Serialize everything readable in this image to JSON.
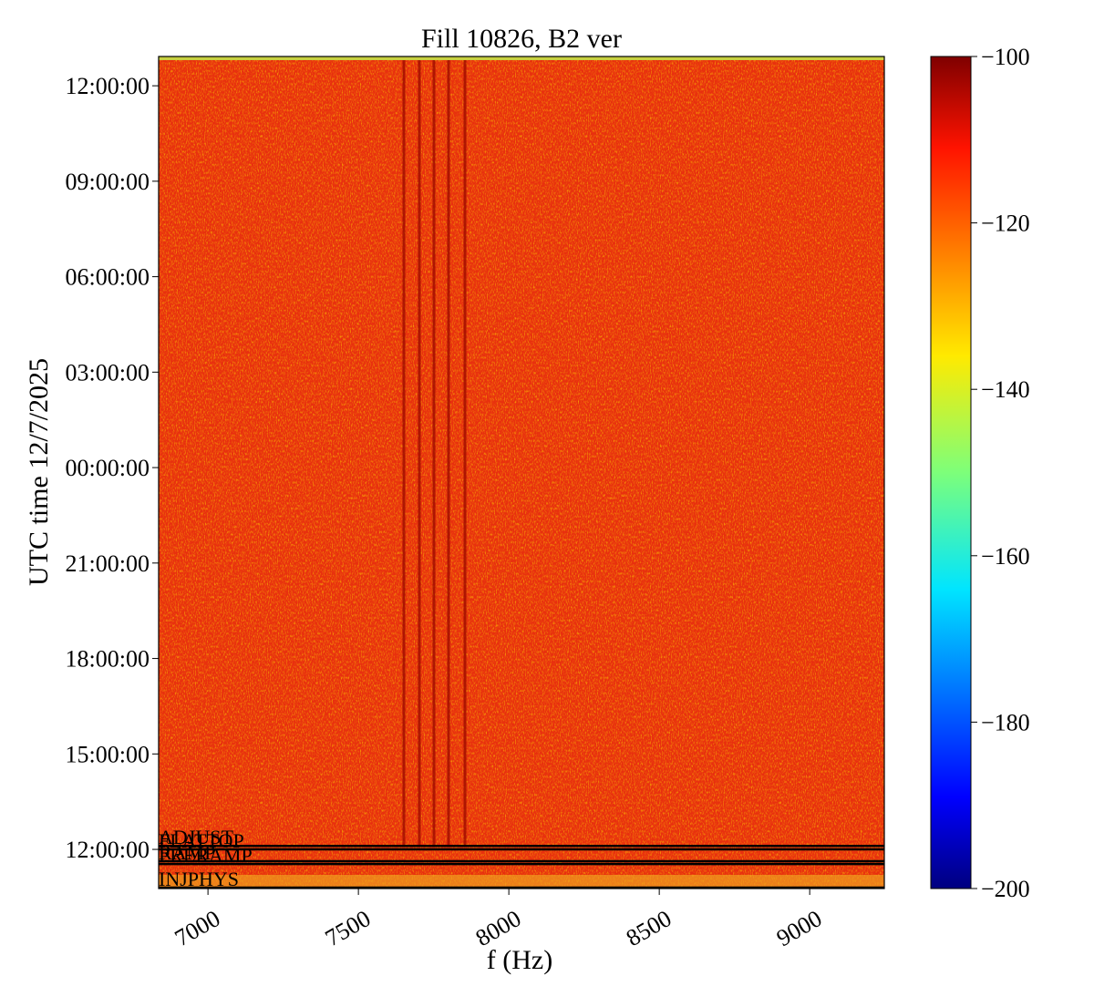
{
  "chart_data": {
    "type": "heatmap",
    "title": "Fill 10826, B2 ver",
    "xlabel": "f (Hz)",
    "ylabel": "UTC time 12/7/2025",
    "xlim": [
      6836,
      9248
    ],
    "xticks": [
      7000,
      7500,
      8000,
      8500,
      9000
    ],
    "ylim": [
      10.77,
      36.92
    ],
    "yticks": [
      {
        "value": 12,
        "label": "12:00:00"
      },
      {
        "value": 15,
        "label": "15:00:00"
      },
      {
        "value": 18,
        "label": "18:00:00"
      },
      {
        "value": 21,
        "label": "21:00:00"
      },
      {
        "value": 24,
        "label": "00:00:00"
      },
      {
        "value": 27,
        "label": "03:00:00"
      },
      {
        "value": 30,
        "label": "06:00:00"
      },
      {
        "value": 33,
        "label": "09:00:00"
      },
      {
        "value": 36,
        "label": "12:00:00"
      }
    ],
    "annotations": [
      {
        "text": "INJPHYS",
        "y": 10.8
      },
      {
        "text": "PRERAMP",
        "y": 11.54
      },
      {
        "text": "RAMP",
        "y": 11.63
      },
      {
        "text": "FLATTOP",
        "y": 12.0
      },
      {
        "text": "ADJUST",
        "y": 12.11
      }
    ],
    "colorbar": {
      "colormap": "jet",
      "clim": [
        -200,
        -100
      ],
      "ticks": [
        {
          "value": -100,
          "label": "−100"
        },
        {
          "value": -120,
          "label": "−120"
        },
        {
          "value": -140,
          "label": "−140"
        },
        {
          "value": -160,
          "label": "−160"
        },
        {
          "value": -180,
          "label": "−180"
        },
        {
          "value": -200,
          "label": "−200"
        }
      ]
    }
  }
}
